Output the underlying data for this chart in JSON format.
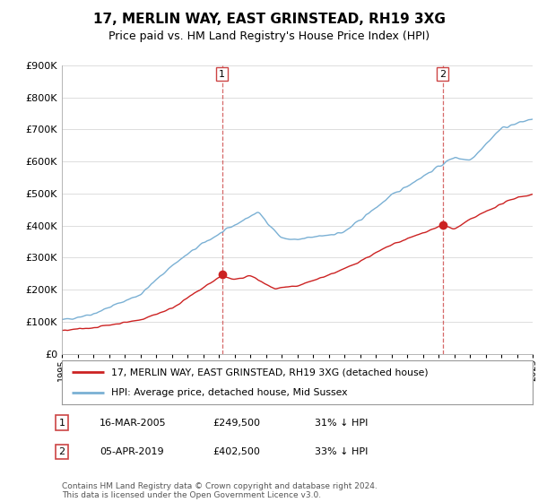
{
  "title": "17, MERLIN WAY, EAST GRINSTEAD, RH19 3XG",
  "subtitle": "Price paid vs. HM Land Registry's House Price Index (HPI)",
  "background_color": "#ffffff",
  "grid_color": "#dddddd",
  "hpi_color": "#7ab0d4",
  "price_color": "#cc2222",
  "sale1": {
    "date_x": 2005.21,
    "price": 249500,
    "label": "1"
  },
  "sale2": {
    "date_x": 2019.26,
    "price": 402500,
    "label": "2"
  },
  "legend_entries": [
    "17, MERLIN WAY, EAST GRINSTEAD, RH19 3XG (detached house)",
    "HPI: Average price, detached house, Mid Sussex"
  ],
  "table": [
    {
      "num": "1",
      "date": "16-MAR-2005",
      "price": "£249,500",
      "hpi": "31% ↓ HPI"
    },
    {
      "num": "2",
      "date": "05-APR-2019",
      "price": "£402,500",
      "hpi": "33% ↓ HPI"
    }
  ],
  "footnote": "Contains HM Land Registry data © Crown copyright and database right 2024.\nThis data is licensed under the Open Government Licence v3.0.",
  "ylim": [
    0,
    900000
  ],
  "xlim_start": 1995,
  "xlim_end": 2025
}
